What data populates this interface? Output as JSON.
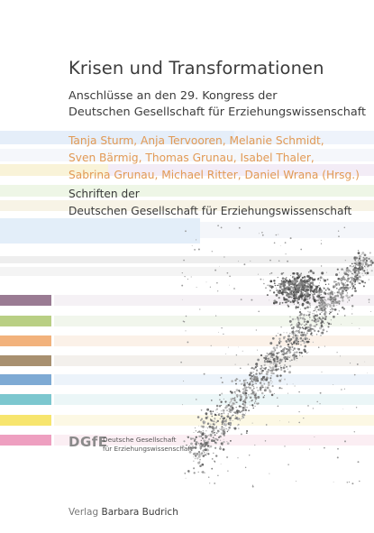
{
  "title": "Krisen und Transformationen",
  "subtitle_lines": [
    "Anschlüsse an den 29. Kongress der",
    "Deutschen Gesellschaft für Erziehungswissenschaft"
  ],
  "authors_lines": [
    "Tanja Sturm, Anja Tervooren, Melanie Schmidt,",
    "Sven Bärmig, Thomas Grunau, Isabel Thaler,",
    "Sabrina Grunau, Michael Ritter, Daniel Wrana (Hrsg.)"
  ],
  "series_lines": [
    "Schriften der",
    "Deutschen Gesellschaft für Erziehungswissenschaft"
  ],
  "logo": {
    "mark": "DGfE",
    "name_lines": [
      "Deutsche Gesellschaft",
      "für Erziehungswissenschaft"
    ]
  },
  "publisher": {
    "prefix": "Verlag",
    "name": "Barbara Budrich"
  },
  "colors": {
    "text": "#3c3c3c",
    "authors": "#e29a55",
    "swatches": [
      "#9a7b93",
      "#b9cf84",
      "#f2b27c",
      "#a89070",
      "#7eaad4",
      "#7cc7cf",
      "#f7e56e",
      "#ee9fc0"
    ]
  }
}
